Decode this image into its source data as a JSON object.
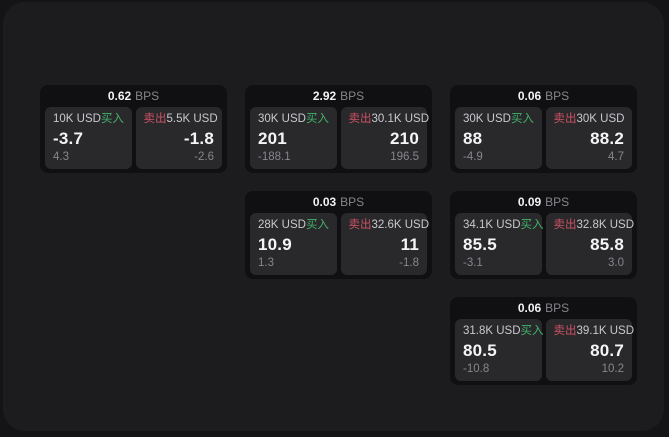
{
  "colors": {
    "outer_background": "#141416",
    "panel_background": "#1c1c1e",
    "card_background": "#101012",
    "tile_background": "#29292c",
    "buy_green": "#42b26a",
    "sell_red": "#cd5164",
    "primary_text": "#f5f5f7",
    "secondary_text": "#86868b",
    "amount_text": "#c9c9cd"
  },
  "labels": {
    "bps_unit": "BPS",
    "buy": "买入",
    "sell": "卖出"
  },
  "cards": [
    {
      "bps_value": "0.62",
      "bps_label": "BPS",
      "buy": {
        "amount": "10K USD",
        "side_label": "买入",
        "price": "-3.7",
        "delta": "4.3"
      },
      "sell": {
        "amount": "5.5K USD",
        "side_label": "卖出",
        "price": "-1.8",
        "delta": "-2.6"
      }
    },
    {
      "bps_value": "2.92",
      "bps_label": "BPS",
      "buy": {
        "amount": "30K USD",
        "side_label": "买入",
        "price": "201",
        "delta": "-188.1"
      },
      "sell": {
        "amount": "30.1K USD",
        "side_label": "卖出",
        "price": "210",
        "delta": "196.5"
      }
    },
    {
      "bps_value": "0.06",
      "bps_label": "BPS",
      "buy": {
        "amount": "30K USD",
        "side_label": "买入",
        "price": "88",
        "delta": "-4.9"
      },
      "sell": {
        "amount": "30K USD",
        "side_label": "卖出",
        "price": "88.2",
        "delta": "4.7"
      }
    },
    {
      "bps_value": "0.03",
      "bps_label": "BPS",
      "buy": {
        "amount": "28K USD",
        "side_label": "买入",
        "price": "10.9",
        "delta": "1.3"
      },
      "sell": {
        "amount": "32.6K USD",
        "side_label": "卖出",
        "price": "11",
        "delta": "-1.8"
      }
    },
    {
      "bps_value": "0.09",
      "bps_label": "BPS",
      "buy": {
        "amount": "34.1K USD",
        "side_label": "买入",
        "price": "85.5",
        "delta": "-3.1"
      },
      "sell": {
        "amount": "32.8K USD",
        "side_label": "卖出",
        "price": "85.8",
        "delta": "3.0"
      }
    },
    {
      "bps_value": "0.06",
      "bps_label": "BPS",
      "buy": {
        "amount": "31.8K USD",
        "side_label": "买入",
        "price": "80.5",
        "delta": "-10.8"
      },
      "sell": {
        "amount": "39.1K USD",
        "side_label": "卖出",
        "price": "80.7",
        "delta": "10.2"
      }
    }
  ]
}
